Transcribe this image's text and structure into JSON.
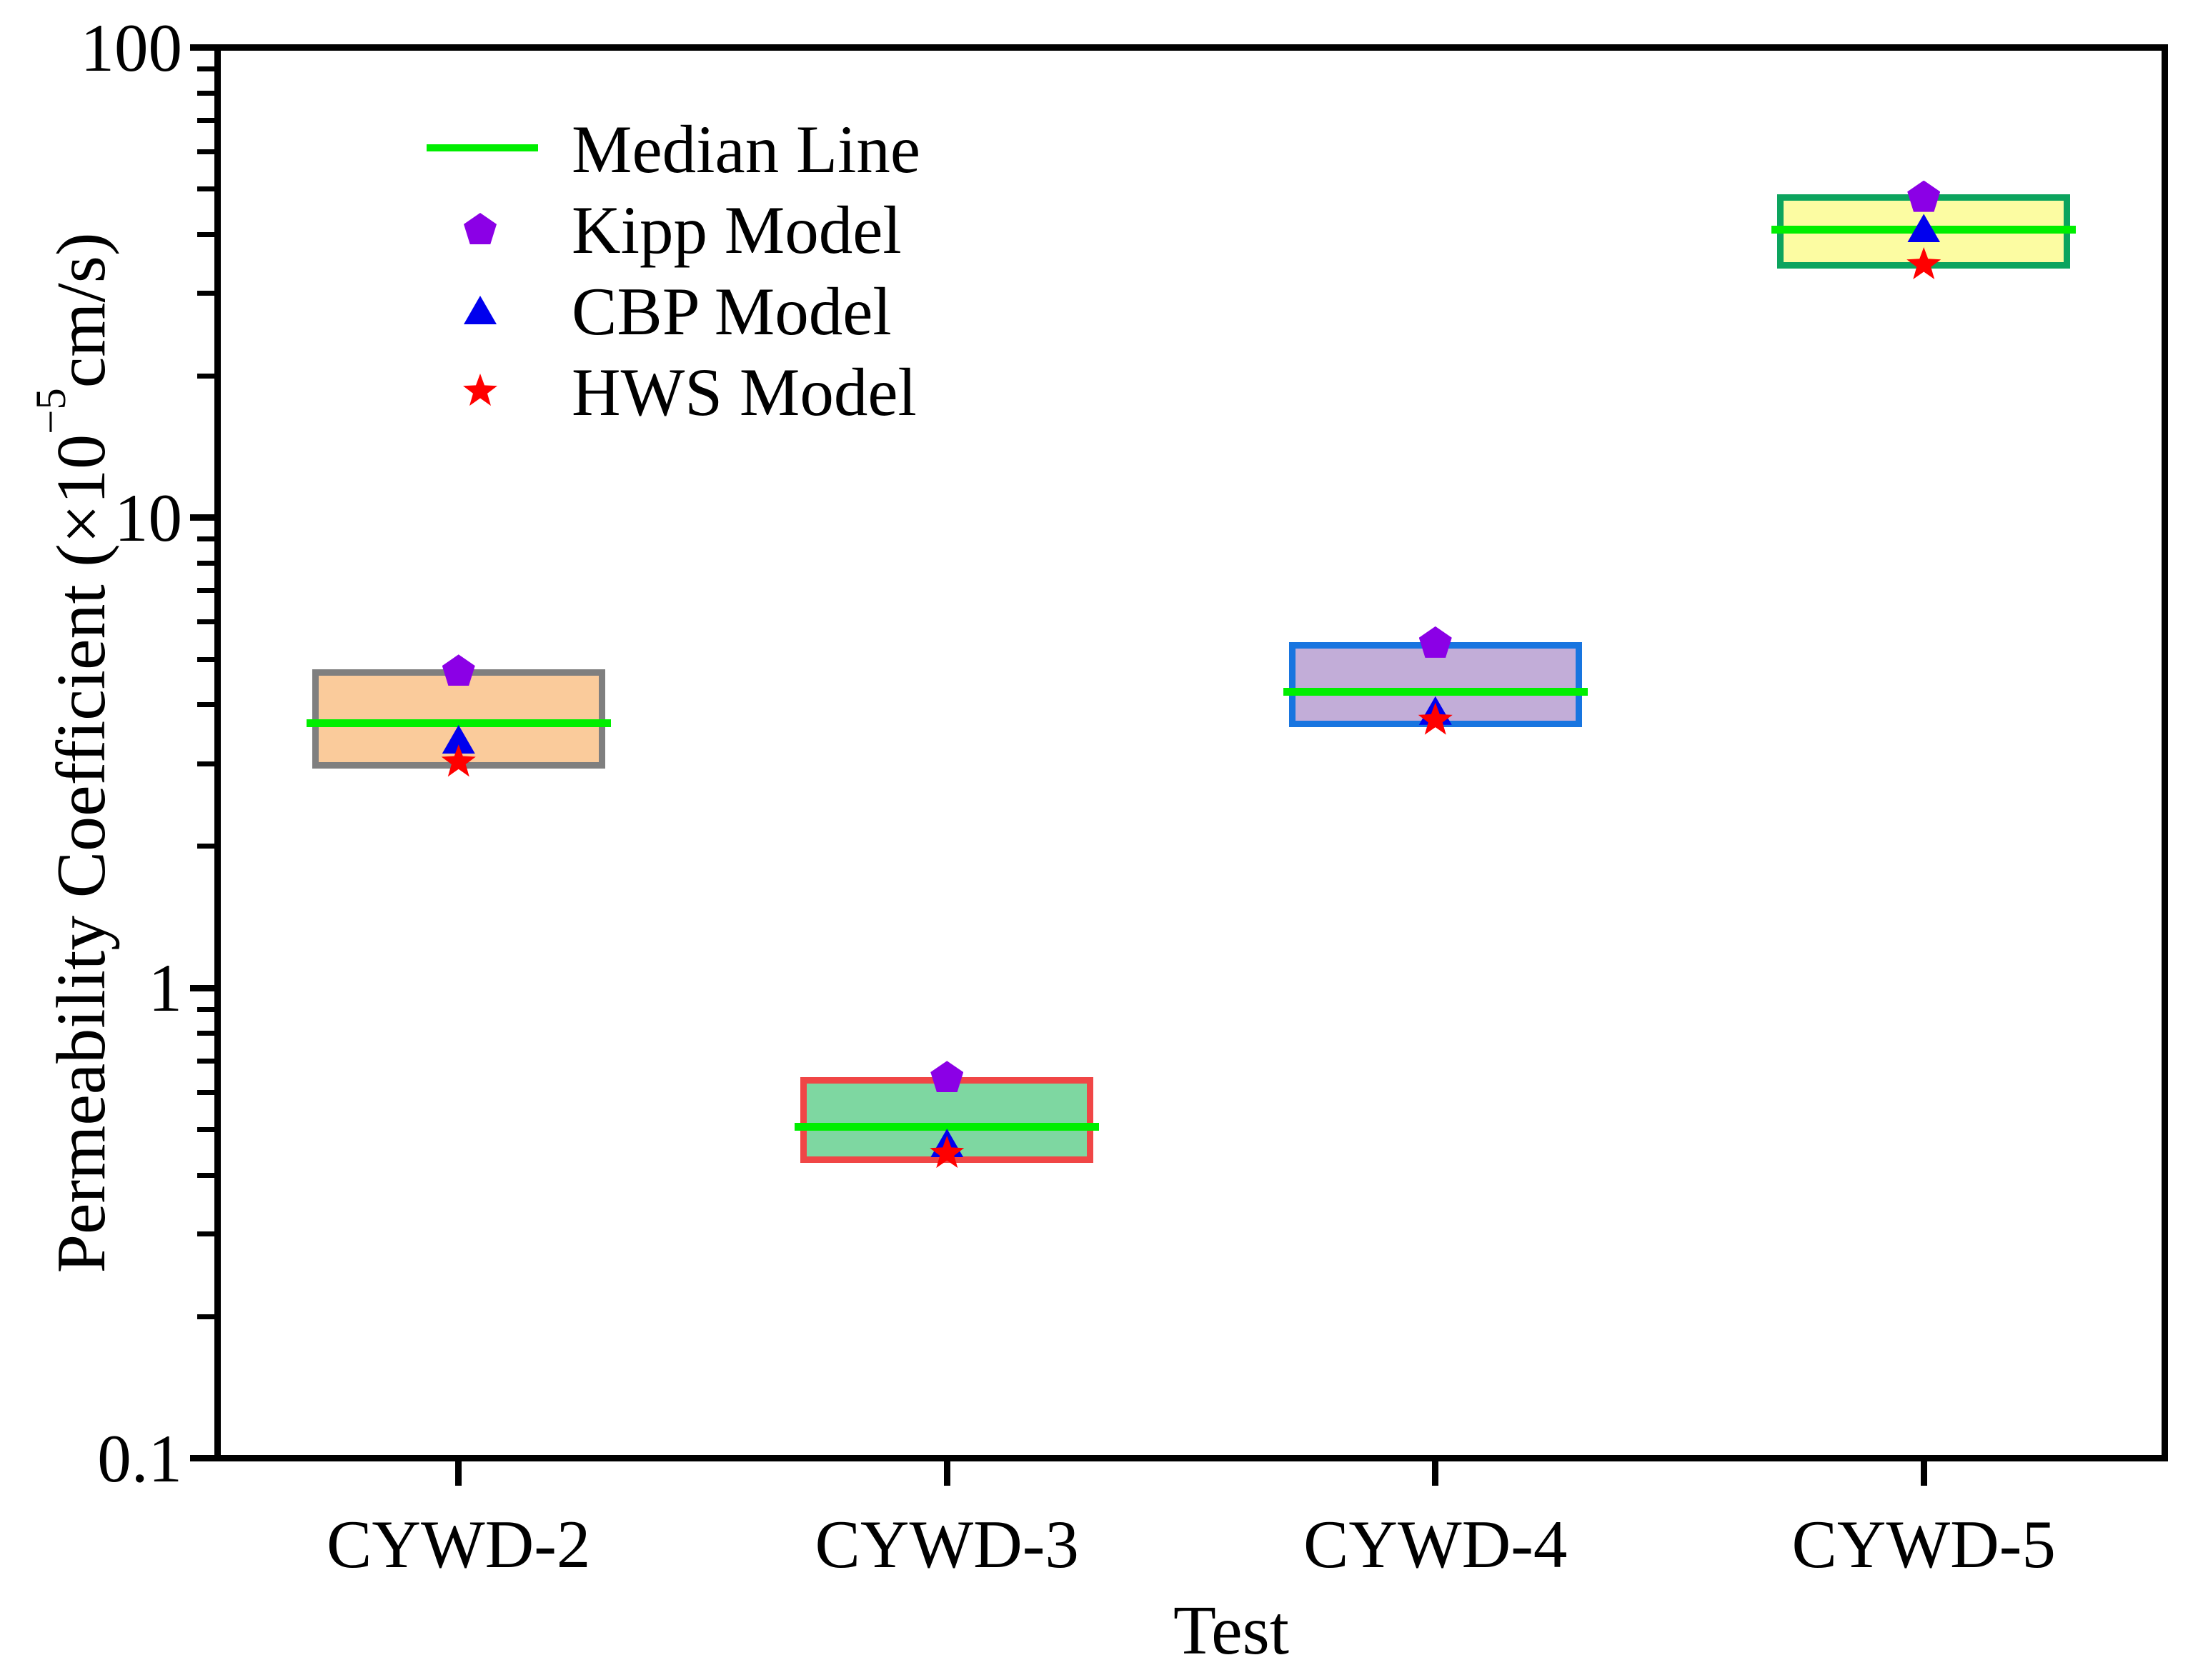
{
  "figure": {
    "background": "#FFFFFF",
    "axis_color": "#000000"
  },
  "chart_data": {
    "type": "box",
    "title": "",
    "xlabel": "Test",
    "ylabel": "Permeability Coefficient (×10⁻⁵cm/s)",
    "ylabel_parts": {
      "pre": "Permeability Coefficient (×10",
      "sup": "−5",
      "post": "cm/s)"
    },
    "y_scale": "log",
    "ylim": [
      0.1,
      100
    ],
    "grid": "off",
    "legend_position": "upper-left-inside",
    "y_major_ticks": [
      {
        "label": "100",
        "value": 100
      },
      {
        "label": "10",
        "value": 10
      },
      {
        "label": "1",
        "value": 1
      },
      {
        "label": "0.1",
        "value": 0.1
      }
    ],
    "categories": [
      "CYWD-2",
      "CYWD-3",
      "CYWD-4",
      "CYWD-5"
    ],
    "boxes": [
      {
        "category": "CYWD-2",
        "low": 2.97,
        "median": 3.65,
        "high": 4.68,
        "fill": "#FACB9B",
        "edge": "#7F7F7F"
      },
      {
        "category": "CYWD-3",
        "low": 0.432,
        "median": 0.507,
        "high": 0.637,
        "fill": "#7ED7A1",
        "edge": "#F04646"
      },
      {
        "category": "CYWD-4",
        "low": 3.64,
        "median": 4.27,
        "high": 5.36,
        "fill": "#C2ADD8",
        "edge": "#1875E0"
      },
      {
        "category": "CYWD-5",
        "low": 34.4,
        "median": 41.0,
        "high": 48.0,
        "fill": "#FCFCA2",
        "edge": "#0CA45E"
      }
    ],
    "median_color": "#00EE00",
    "series": [
      {
        "name": "Kipp Model",
        "marker": "pentagon",
        "color": "#8B00E6",
        "values": [
          4.74,
          0.648,
          5.44,
          48.3
        ]
      },
      {
        "name": "CBP Model",
        "marker": "triangle",
        "color": "#0000EE",
        "values": [
          3.38,
          0.468,
          3.89,
          41.3
        ]
      },
      {
        "name": "HWS Model",
        "marker": "star",
        "color": "#FF0000",
        "values": [
          3.03,
          0.446,
          3.72,
          34.6
        ]
      }
    ],
    "legend": [
      {
        "label": "Median Line",
        "swatch": "line",
        "color": "#00EE00"
      },
      {
        "label": "Kipp Model",
        "swatch": "pentagon",
        "color": "#8B00E6"
      },
      {
        "label": "CBP Model",
        "swatch": "triangle",
        "color": "#0000EE"
      },
      {
        "label": "HWS Model",
        "swatch": "star",
        "color": "#FF0000"
      }
    ]
  }
}
